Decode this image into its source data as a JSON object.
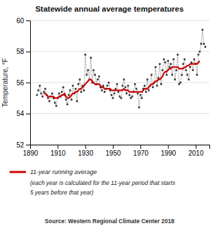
{
  "chart_data": {
    "type": "line",
    "title": "Statewide annual average temperatures",
    "y_label": "Temperature, °F",
    "xlim": [
      1890,
      2020
    ],
    "ylim": [
      52,
      60
    ],
    "xticks": [
      1890,
      1910,
      1930,
      1950,
      1970,
      1990,
      2010
    ],
    "yticks": [
      52,
      54,
      56,
      58,
      60
    ],
    "grid": "y",
    "annotations": [
      "(each year is calculated for the 11-year period that starts",
      "5 years before that year)",
      "Source: Western Regional Climate Center 2018"
    ],
    "series": [
      {
        "color": "#333333",
        "line_style": "dotted",
        "marker": "square",
        "x": [
          1895,
          1896,
          1897,
          1898,
          1899,
          1900,
          1901,
          1902,
          1903,
          1904,
          1905,
          1906,
          1907,
          1908,
          1909,
          1910,
          1911,
          1912,
          1913,
          1914,
          1915,
          1916,
          1917,
          1918,
          1919,
          1920,
          1921,
          1922,
          1923,
          1924,
          1925,
          1926,
          1927,
          1928,
          1929,
          1930,
          1931,
          1932,
          1933,
          1934,
          1935,
          1936,
          1937,
          1938,
          1939,
          1940,
          1941,
          1942,
          1943,
          1944,
          1945,
          1946,
          1947,
          1948,
          1949,
          1950,
          1951,
          1952,
          1953,
          1954,
          1955,
          1956,
          1957,
          1958,
          1959,
          1960,
          1961,
          1962,
          1963,
          1964,
          1965,
          1966,
          1967,
          1968,
          1969,
          1970,
          1971,
          1972,
          1973,
          1974,
          1975,
          1976,
          1977,
          1978,
          1979,
          1980,
          1981,
          1982,
          1983,
          1984,
          1985,
          1986,
          1987,
          1988,
          1989,
          1990,
          1991,
          1992,
          1993,
          1994,
          1995,
          1996,
          1997,
          1998,
          1999,
          2000,
          2001,
          2002,
          2003,
          2004,
          2005,
          2006,
          2007,
          2008,
          2009,
          2010,
          2011,
          2012,
          2013,
          2014,
          2015,
          2016,
          2017
        ],
        "values": [
          55.2,
          55.5,
          55.8,
          55.3,
          55.1,
          55.4,
          55.6,
          55.2,
          55.0,
          54.8,
          55.1,
          55.3,
          55.0,
          54.7,
          54.5,
          55.0,
          55.3,
          55.1,
          55.4,
          55.7,
          55.2,
          54.9,
          54.6,
          55.2,
          55.5,
          54.9,
          55.8,
          55.3,
          55.6,
          54.8,
          55.9,
          56.2,
          55.4,
          55.8,
          55.5,
          57.8,
          56.5,
          56.8,
          56.2,
          57.6,
          56.0,
          56.8,
          56.5,
          55.9,
          56.2,
          56.4,
          55.7,
          55.5,
          55.8,
          55.4,
          55.6,
          55.8,
          56.0,
          55.5,
          55.2,
          55.0,
          55.3,
          55.6,
          55.9,
          55.4,
          55.1,
          55.0,
          55.8,
          56.2,
          55.7,
          55.3,
          55.8,
          55.2,
          55.0,
          55.1,
          55.4,
          55.9,
          55.6,
          55.3,
          54.4,
          55.2,
          55.0,
          55.6,
          55.8,
          55.4,
          56.2,
          55.5,
          55.8,
          56.5,
          55.7,
          56.0,
          57.0,
          55.8,
          56.3,
          57.2,
          55.9,
          56.8,
          57.5,
          57.3,
          56.5,
          57.4,
          57.0,
          57.2,
          56.5,
          57.5,
          56.2,
          56.8,
          57.8,
          55.9,
          56.0,
          56.5,
          57.2,
          57.5,
          56.8,
          56.5,
          56.2,
          57.0,
          57.3,
          56.8,
          57.5,
          57.2,
          56.5,
          57.8,
          58.0,
          58.5,
          59.4,
          58.5,
          58.3
        ]
      },
      {
        "name": "11-year running average",
        "color": "#cc0000",
        "line_style": "solid",
        "x": [
          1900,
          1901,
          1902,
          1903,
          1904,
          1905,
          1906,
          1907,
          1908,
          1909,
          1910,
          1911,
          1912,
          1913,
          1914,
          1915,
          1916,
          1917,
          1918,
          1919,
          1920,
          1921,
          1922,
          1923,
          1924,
          1925,
          1926,
          1927,
          1928,
          1929,
          1930,
          1931,
          1932,
          1933,
          1934,
          1935,
          1936,
          1937,
          1938,
          1939,
          1940,
          1941,
          1942,
          1943,
          1944,
          1945,
          1946,
          1947,
          1948,
          1949,
          1950,
          1951,
          1952,
          1953,
          1954,
          1955,
          1956,
          1957,
          1958,
          1959,
          1960,
          1961,
          1962,
          1963,
          1964,
          1965,
          1966,
          1967,
          1968,
          1969,
          1970,
          1971,
          1972,
          1973,
          1974,
          1975,
          1976,
          1977,
          1978,
          1979,
          1980,
          1981,
          1982,
          1983,
          1984,
          1985,
          1986,
          1987,
          1988,
          1989,
          1990,
          1991,
          1992,
          1993,
          1994,
          1995,
          1996,
          1997,
          1998,
          1999,
          2000,
          2001,
          2002,
          2003,
          2004,
          2005,
          2006,
          2007,
          2008,
          2009,
          2010,
          2011,
          2012,
          2013
        ],
        "values": [
          55.3,
          55.3,
          55.2,
          55.1,
          55.1,
          55.1,
          55.1,
          55.1,
          55.0,
          55.0,
          55.0,
          55.1,
          55.1,
          55.2,
          55.2,
          55.3,
          55.1,
          55.0,
          55.0,
          55.1,
          55.2,
          55.3,
          55.3,
          55.4,
          55.4,
          55.5,
          55.6,
          55.6,
          55.7,
          55.8,
          55.9,
          56.0,
          56.1,
          56.2,
          56.2,
          56.1,
          56.0,
          55.9,
          55.9,
          55.9,
          55.9,
          55.8,
          55.7,
          55.7,
          55.6,
          55.6,
          55.6,
          55.6,
          55.6,
          55.5,
          55.5,
          55.5,
          55.5,
          55.5,
          55.5,
          55.5,
          55.5,
          55.5,
          55.6,
          55.5,
          55.5,
          55.5,
          55.4,
          55.4,
          55.4,
          55.4,
          55.4,
          55.4,
          55.4,
          55.4,
          55.4,
          55.4,
          55.5,
          55.6,
          55.6,
          55.6,
          55.7,
          55.8,
          55.9,
          55.9,
          56.0,
          56.1,
          56.1,
          56.2,
          56.2,
          56.3,
          56.4,
          56.6,
          56.7,
          56.7,
          56.8,
          56.9,
          56.9,
          57.0,
          57.0,
          57.0,
          57.0,
          57.0,
          56.9,
          56.9,
          56.9,
          56.9,
          57.0,
          57.0,
          57.1,
          57.1,
          57.2,
          57.2,
          57.2,
          57.2,
          57.2,
          57.2,
          57.3,
          57.4
        ]
      }
    ]
  }
}
